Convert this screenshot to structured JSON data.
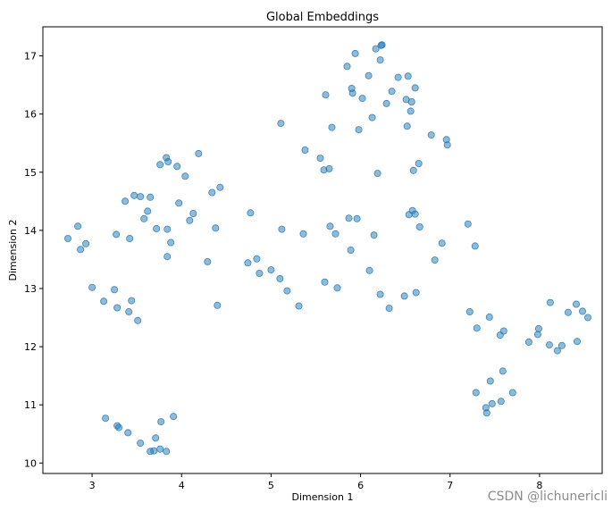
{
  "chart_data": {
    "type": "scatter",
    "title": "Global Embeddings",
    "xlabel": "Dimension 1",
    "ylabel": "Dimension 2",
    "xlim": [
      2.45,
      8.7
    ],
    "ylim": [
      9.82,
      17.5
    ],
    "xticks": [
      "3",
      "4",
      "5",
      "6",
      "7",
      "8"
    ],
    "yticks": [
      "10",
      "11",
      "12",
      "13",
      "14",
      "15",
      "16",
      "17"
    ],
    "grid": false,
    "legend": "none",
    "marker_color": "#1f77b4",
    "marker_alpha": 0.5,
    "points": [
      [
        2.73,
        13.86
      ],
      [
        2.84,
        14.07
      ],
      [
        2.87,
        13.67
      ],
      [
        2.93,
        13.77
      ],
      [
        3.0,
        13.02
      ],
      [
        3.13,
        12.78
      ],
      [
        3.25,
        12.98
      ],
      [
        3.28,
        12.67
      ],
      [
        3.27,
        13.93
      ],
      [
        3.37,
        14.5
      ],
      [
        3.41,
        12.6
      ],
      [
        3.42,
        13.86
      ],
      [
        3.44,
        12.79
      ],
      [
        3.47,
        14.6
      ],
      [
        3.51,
        12.45
      ],
      [
        3.54,
        14.58
      ],
      [
        3.58,
        14.2
      ],
      [
        3.62,
        14.33
      ],
      [
        3.65,
        14.57
      ],
      [
        3.72,
        14.03
      ],
      [
        3.76,
        15.13
      ],
      [
        3.83,
        15.25
      ],
      [
        3.85,
        15.18
      ],
      [
        3.84,
        13.55
      ],
      [
        3.84,
        14.02
      ],
      [
        3.88,
        13.79
      ],
      [
        3.95,
        15.1
      ],
      [
        3.97,
        14.47
      ],
      [
        4.04,
        14.93
      ],
      [
        4.09,
        14.17
      ],
      [
        4.13,
        14.29
      ],
      [
        4.19,
        15.32
      ],
      [
        4.29,
        13.46
      ],
      [
        4.34,
        14.65
      ],
      [
        4.38,
        14.04
      ],
      [
        4.4,
        12.71
      ],
      [
        4.43,
        14.74
      ],
      [
        4.74,
        13.44
      ],
      [
        4.77,
        14.3
      ],
      [
        4.84,
        13.51
      ],
      [
        4.87,
        13.26
      ],
      [
        5.0,
        13.32
      ],
      [
        5.1,
        13.17
      ],
      [
        5.11,
        15.84
      ],
      [
        5.12,
        14.02
      ],
      [
        5.18,
        12.96
      ],
      [
        5.31,
        12.7
      ],
      [
        5.36,
        13.94
      ],
      [
        5.38,
        15.38
      ],
      [
        5.55,
        15.24
      ],
      [
        5.59,
        15.04
      ],
      [
        5.61,
        16.33
      ],
      [
        5.6,
        13.11
      ],
      [
        5.65,
        15.06
      ],
      [
        5.66,
        14.07
      ],
      [
        5.68,
        15.77
      ],
      [
        5.72,
        13.94
      ],
      [
        5.74,
        13.01
      ],
      [
        5.85,
        16.82
      ],
      [
        5.87,
        14.21
      ],
      [
        5.9,
        16.44
      ],
      [
        5.91,
        16.36
      ],
      [
        5.89,
        13.66
      ],
      [
        5.94,
        17.04
      ],
      [
        5.96,
        14.2
      ],
      [
        5.98,
        15.73
      ],
      [
        6.02,
        16.27
      ],
      [
        6.09,
        16.66
      ],
      [
        6.1,
        13.31
      ],
      [
        6.13,
        15.94
      ],
      [
        6.15,
        13.92
      ],
      [
        6.17,
        17.12
      ],
      [
        6.19,
        14.98
      ],
      [
        6.22,
        16.93
      ],
      [
        6.22,
        12.9
      ],
      [
        6.23,
        17.18
      ],
      [
        6.24,
        17.19
      ],
      [
        6.29,
        16.18
      ],
      [
        6.32,
        12.66
      ],
      [
        6.35,
        16.39
      ],
      [
        6.42,
        16.63
      ],
      [
        6.49,
        12.87
      ],
      [
        6.51,
        16.25
      ],
      [
        6.53,
        16.65
      ],
      [
        6.52,
        15.79
      ],
      [
        6.54,
        14.27
      ],
      [
        6.56,
        16.05
      ],
      [
        6.57,
        16.21
      ],
      [
        6.58,
        14.34
      ],
      [
        6.59,
        15.03
      ],
      [
        6.61,
        16.45
      ],
      [
        6.61,
        14.28
      ],
      [
        6.62,
        12.93
      ],
      [
        6.65,
        15.15
      ],
      [
        6.66,
        14.06
      ],
      [
        6.79,
        15.64
      ],
      [
        6.83,
        13.49
      ],
      [
        6.91,
        13.78
      ],
      [
        6.96,
        15.56
      ],
      [
        6.97,
        15.47
      ],
      [
        7.2,
        14.11
      ],
      [
        7.22,
        12.6
      ],
      [
        7.28,
        13.73
      ],
      [
        7.29,
        11.21
      ],
      [
        7.3,
        12.32
      ],
      [
        7.4,
        10.95
      ],
      [
        7.41,
        10.86
      ],
      [
        7.44,
        12.51
      ],
      [
        7.45,
        11.41
      ],
      [
        7.47,
        11.02
      ],
      [
        7.56,
        12.2
      ],
      [
        7.57,
        11.06
      ],
      [
        7.59,
        11.58
      ],
      [
        7.6,
        12.27
      ],
      [
        7.7,
        11.21
      ],
      [
        7.88,
        12.08
      ],
      [
        7.98,
        12.21
      ],
      [
        7.99,
        12.31
      ],
      [
        8.11,
        12.03
      ],
      [
        8.12,
        12.76
      ],
      [
        8.2,
        11.93
      ],
      [
        8.25,
        12.02
      ],
      [
        8.32,
        12.59
      ],
      [
        8.41,
        12.73
      ],
      [
        8.42,
        12.09
      ],
      [
        8.48,
        12.61
      ],
      [
        8.54,
        12.5
      ],
      [
        3.15,
        10.77
      ],
      [
        3.28,
        10.64
      ],
      [
        3.3,
        10.61
      ],
      [
        3.4,
        10.52
      ],
      [
        3.54,
        10.34
      ],
      [
        3.65,
        10.2
      ],
      [
        3.69,
        10.21
      ],
      [
        3.71,
        10.43
      ],
      [
        3.76,
        10.24
      ],
      [
        3.77,
        10.71
      ],
      [
        3.83,
        10.2
      ],
      [
        3.91,
        10.8
      ]
    ]
  },
  "watermark": "CSDN @lichunericli"
}
